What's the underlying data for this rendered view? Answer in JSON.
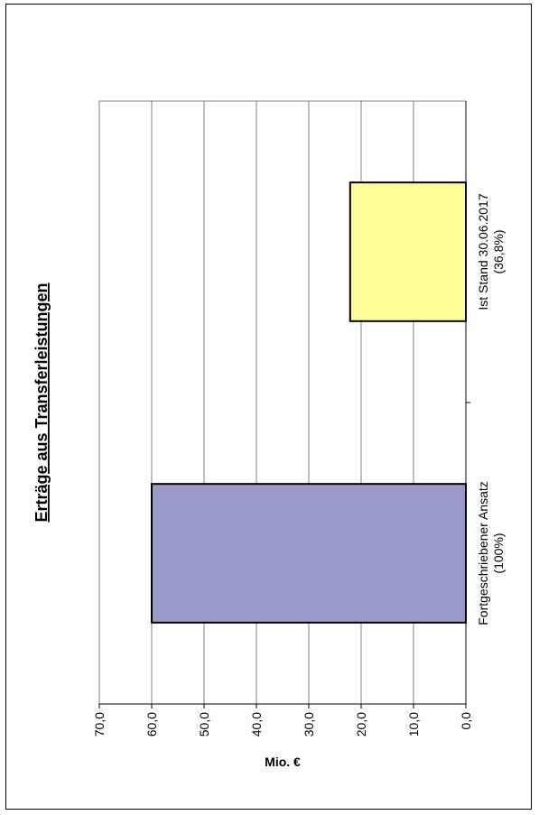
{
  "chart_data": {
    "type": "bar",
    "title": "Erträge aus Transferleistungen",
    "ylabel": "Mio. €",
    "ylim": [
      0,
      70
    ],
    "yticks": [
      "0,0",
      "10,0",
      "20,0",
      "30,0",
      "40,0",
      "50,0",
      "60,0",
      "70,0"
    ],
    "grid": true,
    "categories": [
      [
        "Fortgeschriebener Ansatz",
        "(100%)"
      ],
      [
        "Ist Stand 30.06.2017",
        "(36,8%)"
      ]
    ],
    "values": [
      60.0,
      22.1
    ],
    "colors": [
      "#9999cc",
      "#ffff99"
    ]
  }
}
